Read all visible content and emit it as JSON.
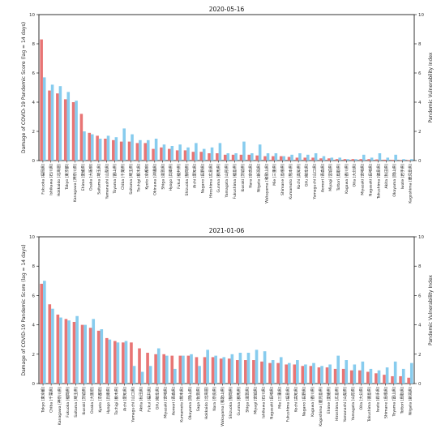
{
  "chart_data": [
    {
      "type": "bar",
      "title": "2020-05-16",
      "ylabel": "Damage of COVID-19 Pandemic Score (lag = 14 days)",
      "ylabel_right": "Pandemic Vulnerability Index",
      "ylim": [
        0,
        10
      ],
      "ylim_right": [
        0,
        10
      ],
      "yticks": [
        "0",
        "2",
        "4",
        "6",
        "8",
        "10"
      ],
      "categories": [
        "Fukuoka [福岡県]",
        "Ishikawa [石川県]",
        "Hokkaido [北海道]",
        "Tokyo [東京都]",
        "Kanagawa [神奈川県]",
        "Ehime [愛媛県]",
        "Osaka [大阪府]",
        "Saitama [埼玉県]",
        "Yamanashi [山梨県]",
        "Toyama [富山県]",
        "Chiba [千葉県]",
        "Saitama [埼玉県]",
        "Tochigi [栃木県]",
        "Kyoto [京都府]",
        "Okinawa [沖縄県]",
        "Shiga [滋賀県]",
        "Hyogo [兵庫県]",
        "Fukui [福井県]",
        "Shizuoka [静岡県]",
        "Aichi [愛知県]",
        "Nagano [長野県]",
        "Hiroshima [広島県]",
        "Gunma [群馬県]",
        "Yamagata [山形県]",
        "Fukushima [福島県]",
        "Ibaraki [茨城県]",
        "Nara [奈良県]",
        "Niigata [新潟県]",
        "Wakayama [和歌山県]",
        "Mie [三重県]",
        "Shimane [島根県]",
        "Kumamoto [熊本県]",
        "Kochi [高知県]",
        "Gifu [岐阜県]",
        "Yamaguchi [山口県]",
        "Aomori [青森県]",
        "Miyagi [宮城県]",
        "Tottori [鳥取県]",
        "Kagawa [香川県]",
        "Oita [大分県]",
        "Miyazaki [宮崎県]",
        "Nagasaki [長崎県]",
        "Tokushima [徳島県]",
        "Akita [秋田県]",
        "Okayama [岡山県]",
        "Iwate [岩手県]",
        "Kagoshima [鹿児島県]"
      ],
      "series": [
        {
          "color": "#e87575",
          "values": [
            8.3,
            4.8,
            4.6,
            4.2,
            4.0,
            3.2,
            1.9,
            1.7,
            1.5,
            1.4,
            1.3,
            1.3,
            1.2,
            1.2,
            0.8,
            0.9,
            0.8,
            0.7,
            0.7,
            0.6,
            0.6,
            0.5,
            0.5,
            0.4,
            0.4,
            0.4,
            0.4,
            0.35,
            0.3,
            0.3,
            0.3,
            0.25,
            0.2,
            0.2,
            0.2,
            0.15,
            0.15,
            0.1,
            0.1,
            0.1,
            0.1,
            0.1,
            0.08,
            0.06,
            0.05,
            0.04,
            0.03
          ]
        },
        {
          "color": "#87ccee",
          "values": [
            5.7,
            5.2,
            5.1,
            4.7,
            4.1,
            2.0,
            1.8,
            1.5,
            1.7,
            1.6,
            2.2,
            1.8,
            1.4,
            1.4,
            1.5,
            1.1,
            1.0,
            1.1,
            0.9,
            1.2,
            0.8,
            0.9,
            1.2,
            0.5,
            0.5,
            1.3,
            0.5,
            1.1,
            0.5,
            0.5,
            0.3,
            0.4,
            0.5,
            0.4,
            0.5,
            0.3,
            0.2,
            0.2,
            0.1,
            0.1,
            0.4,
            0.2,
            0.5,
            0.2,
            0.4,
            0.1,
            0.1
          ]
        }
      ]
    },
    {
      "type": "bar",
      "title": "2021-01-06",
      "ylabel": "Damage of COVID-19 Pandemic Score (lag = 14 days)",
      "ylabel_right": "Pandemic Vulnerability Index",
      "ylim": [
        0,
        10
      ],
      "ylim_right": [
        0,
        10
      ],
      "yticks": [
        "0",
        "2",
        "4",
        "6",
        "8",
        "10"
      ],
      "categories": [
        "Tokyo [東京都]",
        "Chiba [千葉県]",
        "Kanagawa [神奈川県]",
        "Fukuoka [福岡県]",
        "Saitama [埼玉県]",
        "Ibaraki [茨城県]",
        "Osaka [大阪府]",
        "Kyoto [京都府]",
        "Hyogo [兵庫県]",
        "Tochigi [栃木県]",
        "Aichi [愛知県]",
        "Yamaguchi [山口県]",
        "Akita [秋田県]",
        "Fukui [福井県]",
        "Gifu [岐阜県]",
        "Miyazaki [宮崎県]",
        "Aomori [青森県]",
        "Kumamoto [熊本県]",
        "Okayama [岡山県]",
        "Saga [佐賀県]",
        "Hokkaido [北海道]",
        "Nara [奈良県]",
        "Wakayama [和歌山県]",
        "Shizuoka [静岡県]",
        "Gunma [群馬県]",
        "Shiga [滋賀県]",
        "Miyagi [宮城県]",
        "Ishikawa [石川県]",
        "Nagasaki [長崎県]",
        "Mie [三重県]",
        "Fukushima [福島県]",
        "Kochi [高知県]",
        "Nagano [長野県]",
        "Kagawa [香川県]",
        "Kagoshima [鹿児島県]",
        "Ehime [愛媛県]",
        "Hiroshima [広島県]",
        "Yamanashi [山梨県]",
        "Yamagata [山形県]",
        "Oita [大分県]",
        "Tokushima [徳島県]",
        "Iwate [岩手県]",
        "Shimane [島根県]",
        "Toyama [富山県]",
        "Tottori [鳥取県]",
        "Niigata [新潟県]"
      ],
      "series": [
        {
          "color": "#e87575",
          "values": [
            6.8,
            5.4,
            4.7,
            4.4,
            4.2,
            4.0,
            3.8,
            3.6,
            3.1,
            2.9,
            2.8,
            2.8,
            2.4,
            2.1,
            2.0,
            2.0,
            1.9,
            1.9,
            1.9,
            1.8,
            1.8,
            1.8,
            1.7,
            1.7,
            1.6,
            1.6,
            1.6,
            1.5,
            1.4,
            1.4,
            1.3,
            1.3,
            1.2,
            1.2,
            1.1,
            1.1,
            1.0,
            1.0,
            0.9,
            0.9,
            0.8,
            0.7,
            0.6,
            0.5,
            0.5,
            0.4
          ]
        },
        {
          "color": "#87ccee",
          "values": [
            7.0,
            5.1,
            4.5,
            4.3,
            4.6,
            4.0,
            4.4,
            3.7,
            3.0,
            2.8,
            2.9,
            1.2,
            0.8,
            1.2,
            2.4,
            1.9,
            1.0,
            1.9,
            2.0,
            1.2,
            2.3,
            1.9,
            1.8,
            2.0,
            2.1,
            2.1,
            2.3,
            2.2,
            1.6,
            1.8,
            1.4,
            1.6,
            1.3,
            1.4,
            1.2,
            1.3,
            1.9,
            1.6,
            1.3,
            1.5,
            1.0,
            0.9,
            1.1,
            1.5,
            1.0,
            1.4
          ]
        }
      ]
    }
  ]
}
